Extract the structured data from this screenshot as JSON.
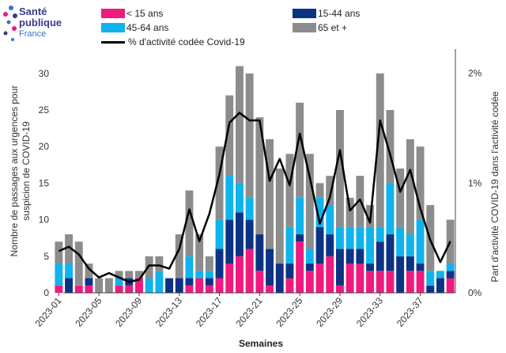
{
  "logo": {
    "line1": "Santé",
    "line2": "publique",
    "line3": "France"
  },
  "chart_data": {
    "type": "bar",
    "stacked": true,
    "categories": [
      "2023-01",
      "2023-02",
      "2023-03",
      "2023-04",
      "2023-05",
      "2023-06",
      "2023-07",
      "2023-08",
      "2023-09",
      "2023-10",
      "2023-11",
      "2023-12",
      "2023-13",
      "2023-14",
      "2023-15",
      "2023-16",
      "2023-17",
      "2023-18",
      "2023-19",
      "2023-20",
      "2023-21",
      "2023-22",
      "2023-23",
      "2023-24",
      "2023-25",
      "2023-26",
      "2023-27",
      "2023-28",
      "2023-29",
      "2023-30",
      "2023-31",
      "2023-32",
      "2023-33",
      "2023-34",
      "2023-35",
      "2023-36",
      "2023-37",
      "2023-38",
      "2023-39",
      "2023-40"
    ],
    "x_tick_labels": [
      "2023-01",
      "2023-05",
      "2023-09",
      "2023-13",
      "2023-17",
      "2023-21",
      "2023-25",
      "2023-29",
      "2023-33",
      "2023-37"
    ],
    "series": [
      {
        "name": "< 15 ans",
        "color": "#ef1a7e",
        "values": [
          1,
          0,
          1,
          1,
          0,
          0,
          1,
          1,
          2,
          0,
          0,
          0,
          0,
          1,
          2,
          1,
          2,
          4,
          5,
          6,
          3,
          1,
          0,
          2,
          7,
          3,
          4,
          5,
          1,
          4,
          4,
          3,
          3,
          3,
          0,
          3,
          3,
          0,
          0,
          2
        ]
      },
      {
        "name": "15-44 ans",
        "color": "#0c3383",
        "values": [
          0,
          2,
          0,
          1,
          0,
          0,
          0,
          1,
          0,
          0,
          0,
          2,
          2,
          1,
          0,
          1,
          4,
          6,
          6,
          4,
          5,
          5,
          4,
          2,
          1,
          1,
          5,
          3,
          5,
          2,
          2,
          1,
          4,
          5,
          5,
          2,
          1,
          1,
          2,
          1
        ]
      },
      {
        "name": "45-64 ans",
        "color": "#10b3ec",
        "values": [
          3,
          2,
          0,
          0,
          0,
          0,
          1,
          0,
          0,
          2,
          3,
          0,
          0,
          3,
          1,
          1,
          4,
          6,
          4,
          3,
          0,
          0,
          0,
          5,
          5,
          2,
          4,
          4,
          3,
          3,
          3,
          5,
          2,
          7,
          4,
          3,
          6,
          2,
          1,
          1
        ]
      },
      {
        "name": "65 et +",
        "color": "#8c8c8c",
        "values": [
          3,
          4,
          6,
          2,
          2,
          2,
          1,
          1,
          1,
          3,
          2,
          0,
          6,
          9,
          5,
          2,
          10,
          11,
          16,
          17,
          16,
          15,
          13,
          10,
          13,
          13,
          2,
          4,
          16,
          4,
          7,
          3,
          21,
          10,
          8,
          13,
          10,
          9,
          0,
          6
        ]
      }
    ],
    "line": {
      "name": "% d'activité codée Covid-19",
      "axis": "right",
      "values": [
        0.38,
        0.42,
        0.35,
        0.22,
        0.14,
        0.18,
        0.14,
        0.1,
        0.12,
        0.25,
        0.25,
        0.22,
        0.4,
        0.76,
        0.47,
        0.72,
        1.08,
        1.55,
        1.64,
        1.57,
        1.57,
        1.02,
        1.22,
        0.98,
        1.45,
        1.05,
        0.63,
        0.87,
        1.3,
        0.75,
        0.85,
        0.64,
        1.57,
        1.26,
        0.92,
        1.12,
        0.77,
        0.48,
        0.28,
        0.47
      ]
    },
    "xlabel": "Semaines",
    "ylabel": "Nombre de passages aux urgences pour suspicion de COVID-19",
    "y2label": "Part d'activité COVID-19 dans l'activité codée",
    "ylim": [
      0,
      33.33
    ],
    "yticks": [
      "0",
      "5",
      "10",
      "15",
      "20",
      "25",
      "30"
    ],
    "y2lim": [
      0,
      2.22
    ],
    "y2ticks": [
      "0%",
      "1%",
      "2%"
    ],
    "grid": false,
    "legend_position": "top"
  }
}
